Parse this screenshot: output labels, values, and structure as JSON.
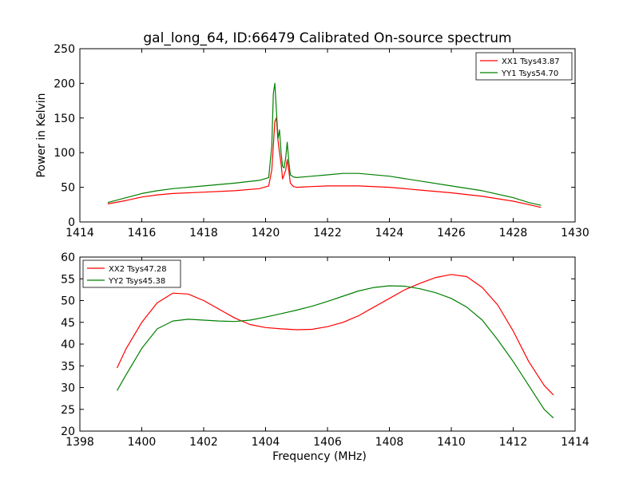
{
  "title": "gal_long_64, ID:66479 Calibrated On-source spectrum",
  "chart_data": [
    {
      "type": "line",
      "ylabel": "Power in Kelvin",
      "xlabel": "",
      "xlim": [
        1414,
        1430
      ],
      "ylim": [
        0,
        250
      ],
      "xticks": [
        "1414",
        "1416",
        "1418",
        "1420",
        "1422",
        "1424",
        "1426",
        "1428",
        "1430"
      ],
      "yticks": [
        "0",
        "50",
        "100",
        "150",
        "200",
        "250"
      ],
      "grid": false,
      "legend_position": "top-right",
      "series": [
        {
          "name": "XX1 Tsys43.87",
          "color": "#ff0000",
          "x": [
            1414.9,
            1415.5,
            1416,
            1416.5,
            1417,
            1418,
            1419,
            1419.8,
            1420.1,
            1420.2,
            1420.3,
            1420.35,
            1420.4,
            1420.45,
            1420.5,
            1420.55,
            1420.6,
            1420.65,
            1420.7,
            1420.75,
            1420.8,
            1420.9,
            1421,
            1421.5,
            1422,
            1423,
            1424,
            1425,
            1426,
            1427,
            1428,
            1428.5,
            1428.9
          ],
          "y": [
            26,
            31,
            36,
            39,
            41,
            43,
            45,
            48,
            52,
            75,
            145,
            150,
            118,
            100,
            84,
            62,
            68,
            75,
            90,
            74,
            56,
            51,
            50,
            51,
            52,
            52,
            50,
            46,
            42,
            37,
            30,
            25,
            21
          ]
        },
        {
          "name": "YY1 Tsys54.70",
          "color": "#008000",
          "x": [
            1414.9,
            1415.5,
            1416,
            1416.5,
            1417,
            1418,
            1419,
            1419.8,
            1420.1,
            1420.2,
            1420.25,
            1420.3,
            1420.35,
            1420.4,
            1420.45,
            1420.5,
            1420.55,
            1420.6,
            1420.65,
            1420.7,
            1420.75,
            1420.8,
            1420.9,
            1421,
            1421.5,
            1422,
            1422.5,
            1423,
            1424,
            1425,
            1426,
            1427,
            1428,
            1428.5,
            1428.9
          ],
          "y": [
            28,
            35,
            41,
            45,
            48,
            52,
            56,
            60,
            64,
            110,
            185,
            200,
            160,
            120,
            133,
            100,
            80,
            78,
            93,
            115,
            87,
            68,
            65,
            64,
            66,
            68,
            70,
            70,
            66,
            59,
            52,
            45,
            35,
            28,
            24
          ]
        }
      ]
    },
    {
      "type": "line",
      "ylabel": "",
      "xlabel": "Frequency (MHz)",
      "xlim": [
        1398,
        1414
      ],
      "ylim": [
        20,
        60
      ],
      "xticks": [
        "1398",
        "1400",
        "1402",
        "1404",
        "1406",
        "1408",
        "1410",
        "1412",
        "1414"
      ],
      "yticks": [
        "20",
        "25",
        "30",
        "35",
        "40",
        "45",
        "50",
        "55",
        "60"
      ],
      "grid": false,
      "legend_position": "top-left",
      "series": [
        {
          "name": "XX2 Tsys47.28",
          "color": "#ff0000",
          "x": [
            1399.2,
            1399.5,
            1400,
            1400.5,
            1401,
            1401.5,
            1402,
            1402.5,
            1403,
            1403.5,
            1404,
            1404.5,
            1405,
            1405.5,
            1406,
            1406.5,
            1407,
            1407.5,
            1408,
            1408.5,
            1409,
            1409.5,
            1410,
            1410.5,
            1411,
            1411.5,
            1412,
            1412.5,
            1413,
            1413.3
          ],
          "y": [
            34.5,
            39,
            45,
            49.5,
            51.7,
            51.5,
            50,
            48,
            46,
            44.5,
            43.8,
            43.5,
            43.3,
            43.4,
            44,
            45,
            46.5,
            48.5,
            50.5,
            52.5,
            54,
            55.3,
            56,
            55.5,
            53,
            49,
            43,
            36,
            30.5,
            28.3
          ]
        },
        {
          "name": "YY2 Tsys45.38",
          "color": "#008000",
          "x": [
            1399.2,
            1399.5,
            1400,
            1400.5,
            1401,
            1401.5,
            1402,
            1402.5,
            1403,
            1403.5,
            1404,
            1404.5,
            1405,
            1405.5,
            1406,
            1406.5,
            1407,
            1407.5,
            1408,
            1408.5,
            1409,
            1409.5,
            1410,
            1410.5,
            1411,
            1411.5,
            1412,
            1412.5,
            1413,
            1413.3
          ],
          "y": [
            29.3,
            33,
            39,
            43.5,
            45.3,
            45.7,
            45.5,
            45.3,
            45.2,
            45.5,
            46.2,
            47,
            47.8,
            48.7,
            49.8,
            51,
            52.2,
            53,
            53.4,
            53.3,
            52.7,
            51.8,
            50.5,
            48.5,
            45.5,
            41,
            36,
            30.5,
            25,
            23
          ]
        }
      ]
    }
  ]
}
